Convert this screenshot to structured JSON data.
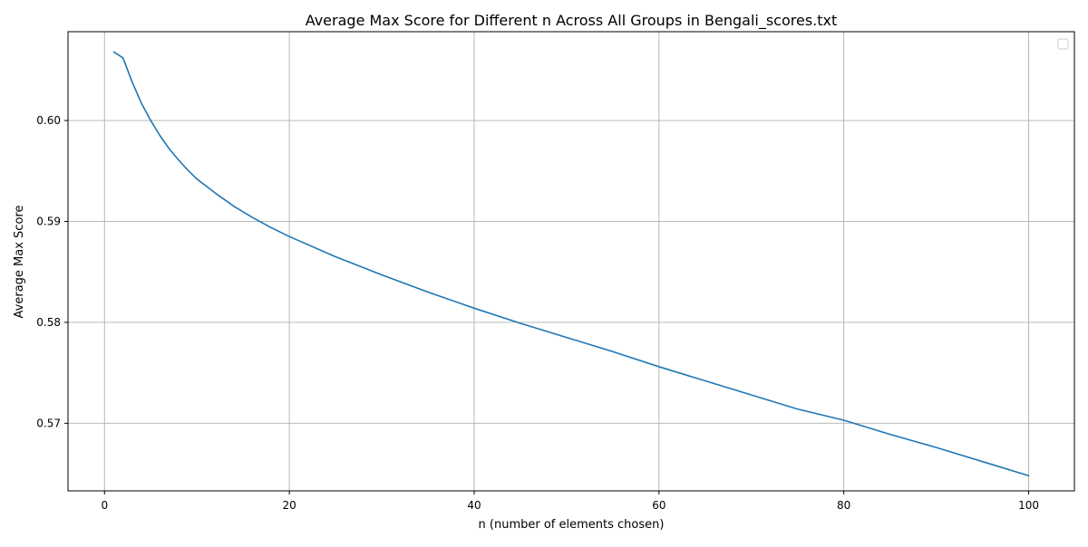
{
  "chart_data": {
    "type": "line",
    "title": "Average Max Score for Different n Across All Groups in Bengali_scores.txt",
    "xlabel": "n (number of elements chosen)",
    "ylabel": "Average Max Score",
    "xlim": [
      -3.95,
      104.95
    ],
    "ylim": [
      0.5633,
      0.6088
    ],
    "xticks": [
      0,
      20,
      40,
      60,
      80,
      100
    ],
    "xtick_labels": [
      "0",
      "20",
      "40",
      "60",
      "80",
      "100"
    ],
    "yticks": [
      0.57,
      0.58,
      0.59,
      0.6
    ],
    "ytick_labels": [
      "0.57",
      "0.58",
      "0.59",
      "0.60"
    ],
    "grid": true,
    "legend": {
      "location": "upper right",
      "entries": []
    },
    "colors": {
      "line": "#1f77b4",
      "grid": "#b0b0b0",
      "axes": "#000000"
    },
    "series": [
      {
        "x": [
          1,
          2,
          3,
          4,
          5,
          6,
          7,
          8,
          9,
          10,
          12,
          14,
          16,
          18,
          20,
          25,
          30,
          35,
          40,
          45,
          50,
          55,
          60,
          65,
          70,
          75,
          80,
          85,
          90,
          95,
          100
        ],
        "y": [
          0.6068,
          0.6062,
          0.6038,
          0.6017,
          0.6,
          0.5985,
          0.5972,
          0.5961,
          0.5951,
          0.5942,
          0.5928,
          0.5915,
          0.5904,
          0.5894,
          0.5885,
          0.5865,
          0.5847,
          0.583,
          0.5814,
          0.5799,
          0.5785,
          0.5771,
          0.5756,
          0.5742,
          0.5728,
          0.5714,
          0.5703,
          0.5689,
          0.5676,
          0.5662,
          0.5648
        ]
      }
    ]
  }
}
